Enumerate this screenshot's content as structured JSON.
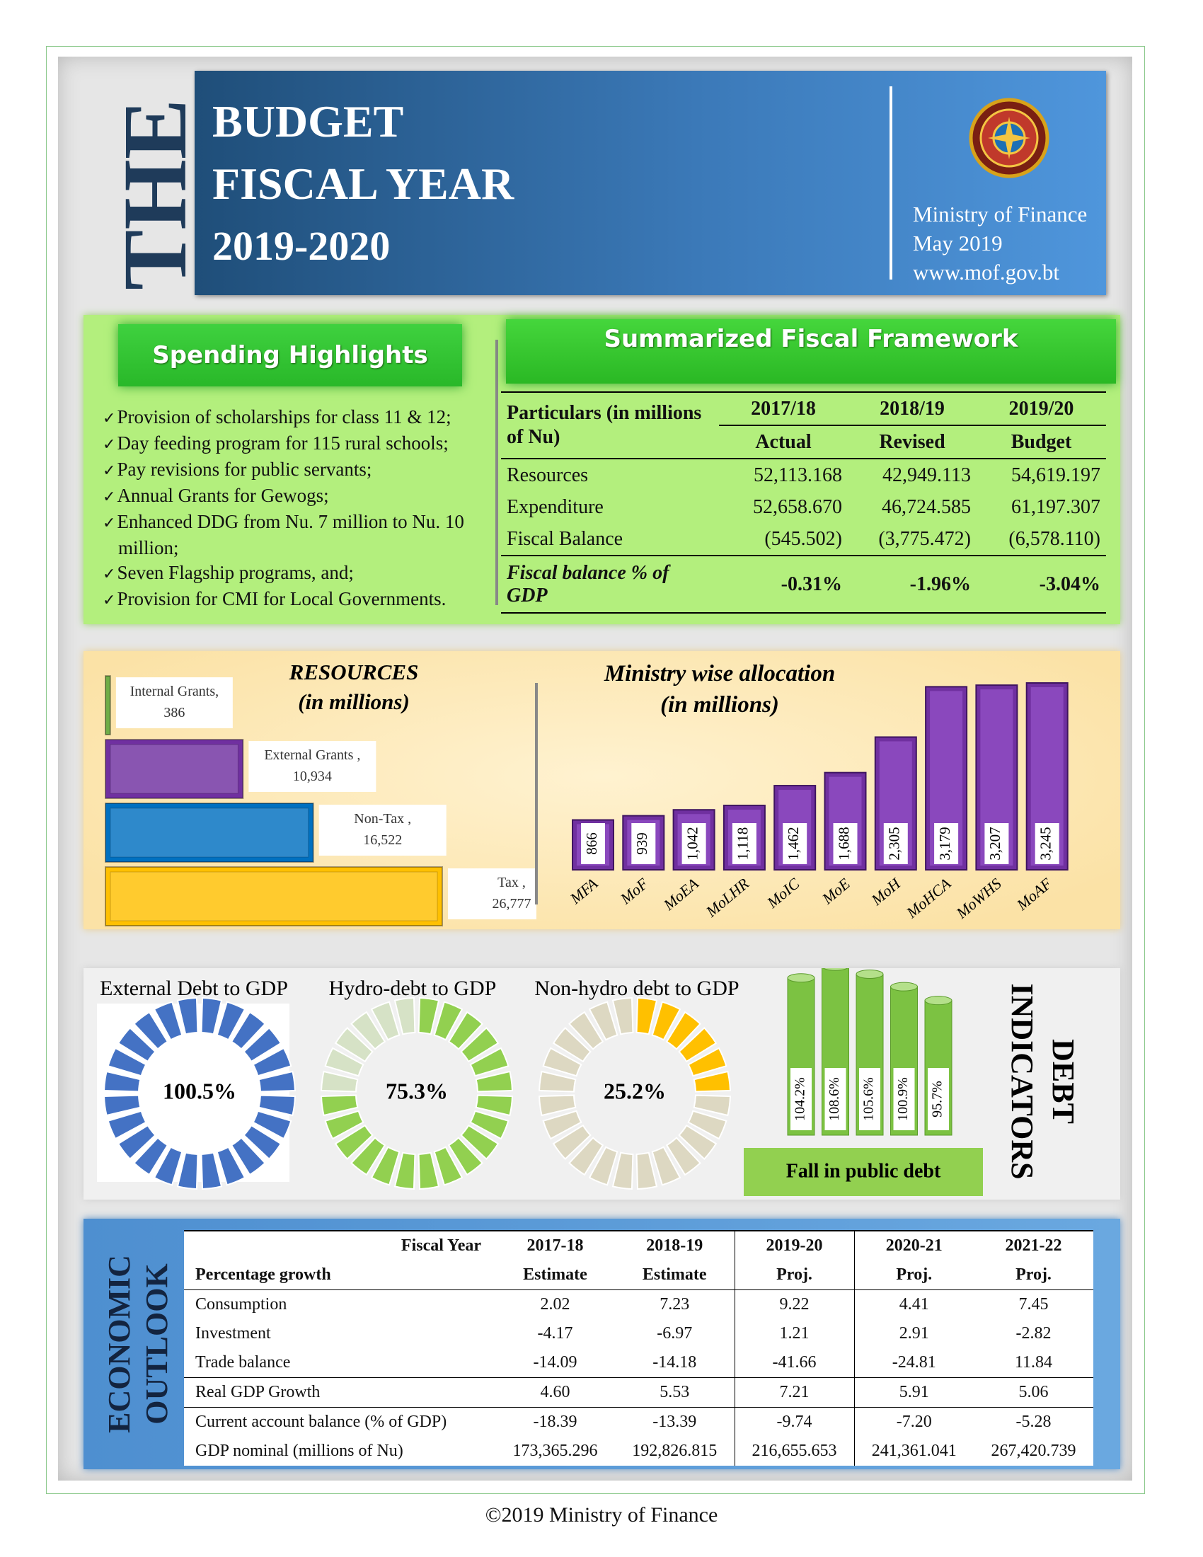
{
  "header": {
    "vertical_title": "THE",
    "title_lines": [
      "BUDGET",
      "FISCAL YEAR"
    ],
    "years": "2019-2020",
    "publisher": "Ministry of Finance",
    "date": "May 2019",
    "website": "www.mof.gov.bt"
  },
  "spending_highlights": {
    "title": "Spending Highlights",
    "items": [
      "Provision of scholarships for class 11 & 12;",
      "Day feeding program for 115 rural schools;",
      "Pay revisions for public servants;",
      "Annual Grants for Gewogs;",
      "Enhanced DDG from Nu. 7 million to Nu. 10 million;",
      "Seven Flagship programs, and;",
      "Provision for CMI for Local Governments."
    ]
  },
  "fiscal_framework": {
    "title": "Summarized Fiscal Framework",
    "header_label": "Particulars (in millions of Nu)",
    "years": [
      "2017/18",
      "2018/19",
      "2019/20"
    ],
    "stages": [
      "Actual",
      "Revised",
      "Budget"
    ],
    "rows": [
      [
        "Resources",
        "52,113.168",
        "42,949.113",
        "54,619.197"
      ],
      [
        "Expenditure",
        "52,658.670",
        "46,724.585",
        "61,197.307"
      ],
      [
        "Fiscal Balance",
        "(545.502)",
        "(3,775.472)",
        "(6,578.110)"
      ],
      [
        "Fiscal balance % of GDP",
        "-0.31%",
        "-1.96%",
        "-3.04%"
      ]
    ]
  },
  "resources": {
    "type": "bar",
    "orientation": "horizontal",
    "title": "RESOURCES",
    "subtitle": "(in millions)",
    "categories": [
      "Internal Grants,",
      "External Grants ,",
      "Non-Tax ,",
      "Tax ,"
    ],
    "values": [
      386,
      10934,
      16522,
      26777
    ],
    "value_labels": [
      "386",
      "10,934",
      "16,522",
      "26,777"
    ],
    "colors": [
      "#70ad47",
      "#7030a0",
      "#0070c0",
      "#ffc000"
    ]
  },
  "ministry_allocation": {
    "type": "bar",
    "title": "Ministry wise allocation",
    "subtitle": "(in millions)",
    "categories": [
      "MFA",
      "MoF",
      "MoEA",
      "MoLHR",
      "MoIC",
      "MoE",
      "MoH",
      "MoHCA",
      "MoWHS",
      "MoAF"
    ],
    "values": [
      866,
      939,
      1042,
      1118,
      1462,
      1688,
      2305,
      3179,
      3207,
      3245
    ],
    "value_labels": [
      "866",
      "939",
      "1,042",
      "1,118",
      "1,462",
      "1,688",
      "2,305",
      "3,179",
      "3,207",
      "3,245"
    ],
    "color": "#7030a0"
  },
  "debt_ratios": {
    "type": "donut",
    "items": [
      {
        "title": "External Debt to GDP",
        "value": 100.5,
        "value_label": "100.5%",
        "color": "#4472c4",
        "track_color": "#c9d4ea"
      },
      {
        "title": "Hydro-debt to GDP",
        "value": 75.3,
        "value_label": "75.3%",
        "color": "#92d050",
        "track_color": "#d6e2c6"
      },
      {
        "title": "Non-hydro debt to GDP",
        "value": 25.2,
        "value_label": "25.2%",
        "color": "#ffc000",
        "track_color": "#ddd8c2"
      }
    ]
  },
  "public_debt": {
    "type": "bar",
    "title": "DEBT INDICATORS",
    "caption": "Fall in public debt",
    "values": [
      104.2,
      108.6,
      105.6,
      100.9,
      95.7
    ],
    "value_labels": [
      "104.2%",
      "108.6%",
      "105.6%",
      "100.9%",
      "95.7%"
    ],
    "ylim": [
      45,
      110
    ],
    "color": "#7cc242"
  },
  "economic_outlook": {
    "title_lines": [
      "ECONOMIC",
      "OUTLOOK"
    ],
    "header_label_top": "Fiscal Year",
    "header_label": "Percentage growth",
    "years": [
      "2017-18",
      "2018-19",
      "2019-20",
      "2020-21",
      "2021-22"
    ],
    "stages": [
      "Estimate",
      "Estimate",
      "Proj.",
      "Proj.",
      "Proj."
    ],
    "rows": [
      [
        "Consumption",
        "2.02",
        "7.23",
        "9.22",
        "4.41",
        "7.45"
      ],
      [
        "Investment",
        "-4.17",
        "-6.97",
        "1.21",
        "2.91",
        "-2.82"
      ],
      [
        "Trade balance",
        "-14.09",
        "-14.18",
        "-41.66",
        "-24.81",
        "11.84"
      ],
      [
        "Real GDP Growth",
        "4.60",
        "5.53",
        "7.21",
        "5.91",
        "5.06"
      ],
      [
        "Current account balance (% of GDP)",
        "-18.39",
        "-13.39",
        "-9.74",
        "-7.20",
        "-5.28"
      ],
      [
        "GDP nominal (millions of Nu)",
        "173,365.296",
        "192,826.815",
        "216,655.653",
        "241,361.041",
        "267,420.739"
      ]
    ]
  },
  "footer": "©2019 Ministry of Finance"
}
